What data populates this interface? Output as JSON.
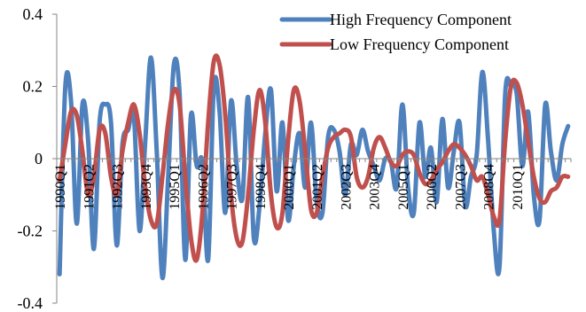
{
  "chart_data": {
    "type": "line",
    "title": "",
    "xlabel": "",
    "ylabel": "",
    "ylim": [
      -0.4,
      0.4
    ],
    "yticks": [
      -0.4,
      -0.2,
      0,
      0.2,
      0.4
    ],
    "ytick_labels": [
      "-0.4",
      "-0.2",
      "0",
      "0.2",
      "0.4"
    ],
    "grid": false,
    "legend_position": "top-right",
    "xtick_labels": [
      "1990Q1",
      "1991Q2",
      "1992Q3",
      "1993Q4",
      "1995Q1",
      "1996Q2",
      "1997Q3",
      "1998Q4",
      "2000Q1",
      "2001Q2",
      "2002Q3",
      "2003Q4",
      "2005Q1",
      "2006Q2",
      "2007Q3",
      "2008Q4",
      "2010Q1"
    ],
    "x_start": "1990Q1",
    "series": [
      {
        "name": "High Frequency Component",
        "color": "#4F81BD",
        "values": [
          -0.32,
          0.2,
          0.16,
          -0.18,
          0.15,
          0.05,
          -0.25,
          0.1,
          0.15,
          0.1,
          -0.24,
          0.04,
          0.08,
          0.12,
          -0.2,
          0.05,
          0.28,
          0.02,
          -0.33,
          -0.05,
          0.26,
          0.18,
          -0.28,
          0.12,
          -0.02,
          -0.01,
          -0.28,
          0.2,
          0.13,
          -0.15,
          0.16,
          -0.02,
          -0.11,
          0.17,
          -0.22,
          -0.13,
          0.07,
          0.19,
          -0.09,
          0.1,
          -0.17,
          -0.02,
          0.07,
          -0.08,
          0.1,
          -0.12,
          -0.15,
          0.06,
          0.08,
          0.02,
          -0.1,
          0.04,
          0.01,
          0.08,
          0.02,
          -0.02,
          -0.06,
          0,
          -0.01,
          -0.08,
          0.15,
          -0.08,
          -0.15,
          0.1,
          -0.05,
          0.03,
          -0.12,
          0.11,
          -0.08,
          0.02,
          0.1,
          -0.13,
          -0.05,
          0.01,
          0.24,
          0.05,
          -0.2,
          -0.3,
          0.18,
          0.2,
          0.18,
          -0.02,
          0.13,
          -0.1,
          -0.17,
          0.15,
          0.02,
          -0.06,
          0.04,
          0.09
        ]
      },
      {
        "name": "Low Frequency Component",
        "color": "#C0504D",
        "values": [
          -0.06,
          0.04,
          0.13,
          0.12,
          0.02,
          -0.1,
          -0.05,
          0.08,
          0.07,
          -0.05,
          -0.1,
          0.02,
          0.1,
          0.15,
          0.07,
          -0.08,
          -0.17,
          -0.18,
          -0.05,
          0.1,
          0.19,
          0.15,
          -0.05,
          -0.22,
          -0.28,
          -0.15,
          0.1,
          0.27,
          0.26,
          0.12,
          -0.1,
          -0.22,
          -0.23,
          -0.1,
          0.08,
          0.19,
          0.1,
          -0.1,
          -0.19,
          -0.15,
          0.05,
          0.19,
          0.16,
          0.02,
          -0.14,
          -0.15,
          -0.05,
          0.03,
          0.06,
          0.07,
          0.08,
          0.06,
          -0.05,
          -0.08,
          -0.05,
          0.03,
          0.06,
          0.03,
          -0.01,
          -0.02,
          0.01,
          0.02,
          0.01,
          -0.04,
          -0.07,
          -0.06,
          -0.03,
          -0.01,
          0.02,
          0.04,
          0.03,
          0.01,
          -0.02,
          -0.06,
          -0.05,
          -0.1,
          -0.16,
          -0.17,
          0.05,
          0.2,
          0.21,
          0.15,
          0.05,
          -0.05,
          -0.11,
          -0.12,
          -0.09,
          -0.08,
          -0.05,
          -0.05
        ]
      }
    ]
  }
}
